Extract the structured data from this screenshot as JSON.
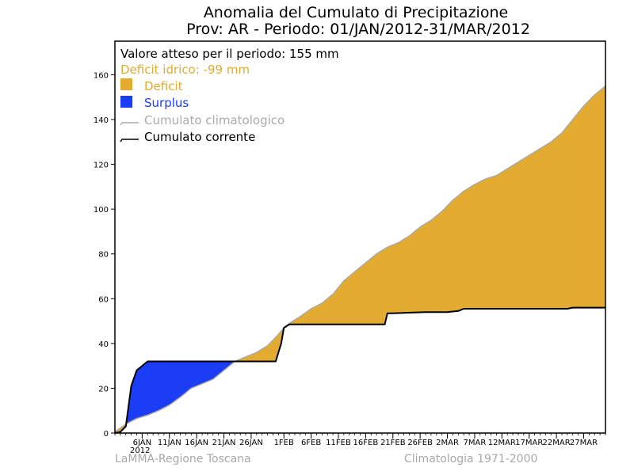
{
  "chart_data": {
    "type": "area",
    "title": "Anomalia del Cumulato di Precipitazione",
    "subtitle": "Prov: AR - Periodo: 01/JAN/2012-31/MAR/2012",
    "xlabel": "",
    "ylabel": "",
    "ylim": [
      0,
      175
    ],
    "yticks": [
      0,
      20,
      40,
      60,
      80,
      100,
      120,
      140,
      160
    ],
    "xlim": [
      1,
      91
    ],
    "x_tick_days": [
      6,
      11,
      16,
      21,
      26,
      32,
      37,
      42,
      47,
      52,
      57,
      62,
      67,
      72,
      77,
      82,
      87
    ],
    "x_tick_labels": [
      "6JAN",
      "11JAN",
      "16JAN",
      "21JAN",
      "26JAN",
      "1FEB",
      "6FEB",
      "11FEB",
      "16FEB",
      "21FEB",
      "26FEB",
      "2MAR",
      "7MAR",
      "12MAR",
      "17MAR",
      "22MAR",
      "27MAR"
    ],
    "x_year_label": "2012",
    "x_unit": "day of year 2012",
    "grid": false,
    "legend_position": "top-left",
    "series": [
      {
        "name": "Cumulato climatologico",
        "color": "#aaaaaa",
        "x": [
          1,
          3,
          5,
          7,
          9,
          11,
          13,
          15,
          17,
          19,
          21,
          23,
          25,
          27,
          29,
          31,
          32,
          33,
          35,
          37,
          39,
          41,
          43,
          45,
          47,
          49,
          51,
          53,
          55,
          57,
          59,
          61,
          63,
          65,
          67,
          69,
          71,
          73,
          75,
          77,
          79,
          81,
          83,
          85,
          87,
          89,
          91
        ],
        "values": [
          0.5,
          4,
          6.5,
          8,
          10,
          12.5,
          16,
          20,
          22,
          24,
          28,
          32,
          34,
          36,
          39,
          44,
          47,
          49,
          52,
          55.5,
          58,
          62,
          68,
          72,
          76,
          80,
          83,
          85,
          88,
          92,
          95,
          99,
          104,
          108,
          111,
          113.5,
          115,
          118,
          121,
          124,
          127,
          130,
          134,
          140,
          146,
          151,
          155
        ]
      },
      {
        "name": "Cumulato corrente",
        "color": "#000000",
        "x": [
          1,
          2,
          3,
          3.5,
          4,
          5,
          6,
          7,
          10,
          15,
          20,
          25,
          29,
          30.5,
          31,
          31.5,
          32,
          33,
          40,
          48,
          50.5,
          51,
          52,
          58,
          62,
          64,
          65,
          70,
          75,
          80,
          84,
          85,
          91
        ],
        "values": [
          0,
          0.5,
          3,
          12,
          21,
          28,
          30,
          32,
          32,
          32,
          32,
          32,
          32,
          32,
          36,
          40,
          47,
          48.5,
          48.5,
          48.5,
          48.5,
          53.5,
          53.5,
          54,
          54,
          54.5,
          55.5,
          55.5,
          55.5,
          55.5,
          55.5,
          56,
          56
        ]
      }
    ]
  },
  "legend": {
    "expected": "Valore atteso per il periodo: 155 mm",
    "deficit_idrico": "Deficit idrico: -99 mm",
    "deficit_label": "Deficit",
    "surplus_label": "Surplus",
    "clim_label": "Cumulato climatologico",
    "current_label": "Cumulato corrente"
  },
  "footer": {
    "left": "LaMMA-Regione Toscana",
    "right": "Climatologia 1971-2000"
  },
  "colors": {
    "deficit": "#e3ab2f",
    "surplus": "#1b3df5",
    "clim": "#aaaaaa",
    "current": "#000000",
    "frame": "#000000",
    "footer": "#a8a8a8"
  }
}
